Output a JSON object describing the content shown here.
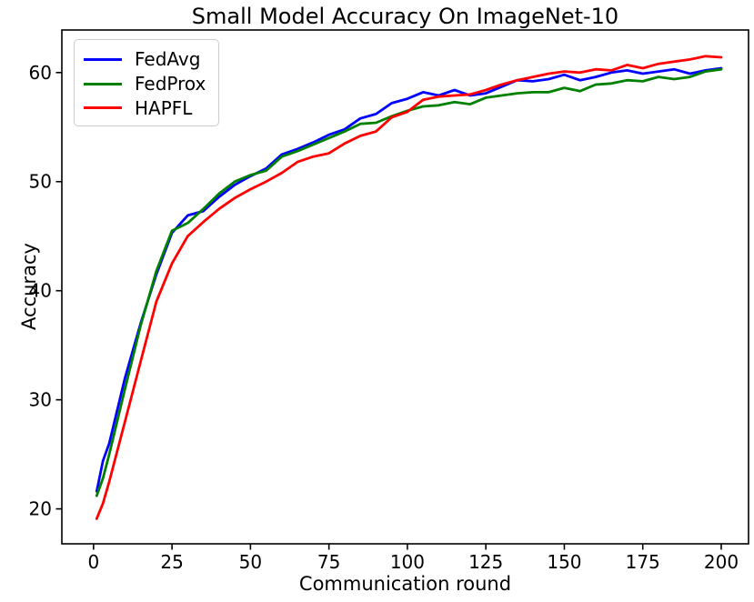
{
  "title": "Small Model Accuracy On ImageNet-10",
  "chart_data": {
    "type": "line",
    "title": "Small Model Accuracy On ImageNet-10",
    "xlabel": "Communication round",
    "ylabel": "Accuracy",
    "xlim": [
      -10.1,
      208.7
    ],
    "ylim": [
      16.8,
      63.9
    ],
    "xticks": [
      0,
      25,
      50,
      75,
      100,
      125,
      150,
      175,
      200
    ],
    "yticks": [
      20,
      30,
      40,
      50,
      60
    ],
    "grid": false,
    "legend_position": "upper left",
    "x": [
      1,
      3,
      5,
      10,
      15,
      20,
      25,
      30,
      35,
      40,
      45,
      50,
      55,
      60,
      65,
      70,
      75,
      80,
      85,
      90,
      95,
      100,
      105,
      110,
      115,
      120,
      125,
      130,
      135,
      140,
      145,
      150,
      155,
      160,
      165,
      170,
      175,
      180,
      185,
      190,
      195,
      200
    ],
    "series": [
      {
        "name": "FedAvg",
        "color": "#0000ff",
        "values": [
          21.6,
          24.4,
          26.0,
          32.0,
          37.0,
          41.5,
          45.3,
          46.9,
          47.3,
          48.6,
          49.7,
          50.5,
          51.2,
          52.5,
          53.0,
          53.6,
          54.3,
          54.8,
          55.8,
          56.2,
          57.2,
          57.6,
          58.2,
          57.9,
          58.4,
          57.9,
          58.1,
          58.7,
          59.3,
          59.2,
          59.4,
          59.8,
          59.3,
          59.6,
          60.0,
          60.2,
          59.9,
          60.1,
          60.3,
          59.9,
          60.2,
          60.4
        ]
      },
      {
        "name": "FedProx",
        "color": "#008000",
        "values": [
          21.2,
          22.8,
          25.0,
          31.0,
          36.8,
          41.8,
          45.5,
          46.2,
          47.5,
          48.9,
          50.0,
          50.6,
          51.0,
          52.3,
          52.8,
          53.4,
          54.0,
          54.6,
          55.3,
          55.4,
          56.0,
          56.5,
          56.9,
          57.0,
          57.3,
          57.1,
          57.7,
          57.9,
          58.1,
          58.2,
          58.2,
          58.6,
          58.3,
          58.9,
          59.0,
          59.3,
          59.2,
          59.6,
          59.4,
          59.6,
          60.1,
          60.3
        ]
      },
      {
        "name": "HAPFL",
        "color": "#ff0000",
        "values": [
          19.1,
          20.5,
          22.5,
          28.0,
          33.5,
          39.0,
          42.5,
          45.0,
          46.3,
          47.5,
          48.5,
          49.3,
          50.0,
          50.8,
          51.8,
          52.3,
          52.6,
          53.5,
          54.2,
          54.6,
          55.9,
          56.4,
          57.5,
          57.8,
          57.9,
          58.0,
          58.4,
          58.9,
          59.3,
          59.6,
          59.9,
          60.1,
          60.0,
          60.3,
          60.2,
          60.7,
          60.4,
          60.8,
          61.0,
          61.2,
          61.5,
          61.4
        ]
      }
    ]
  }
}
